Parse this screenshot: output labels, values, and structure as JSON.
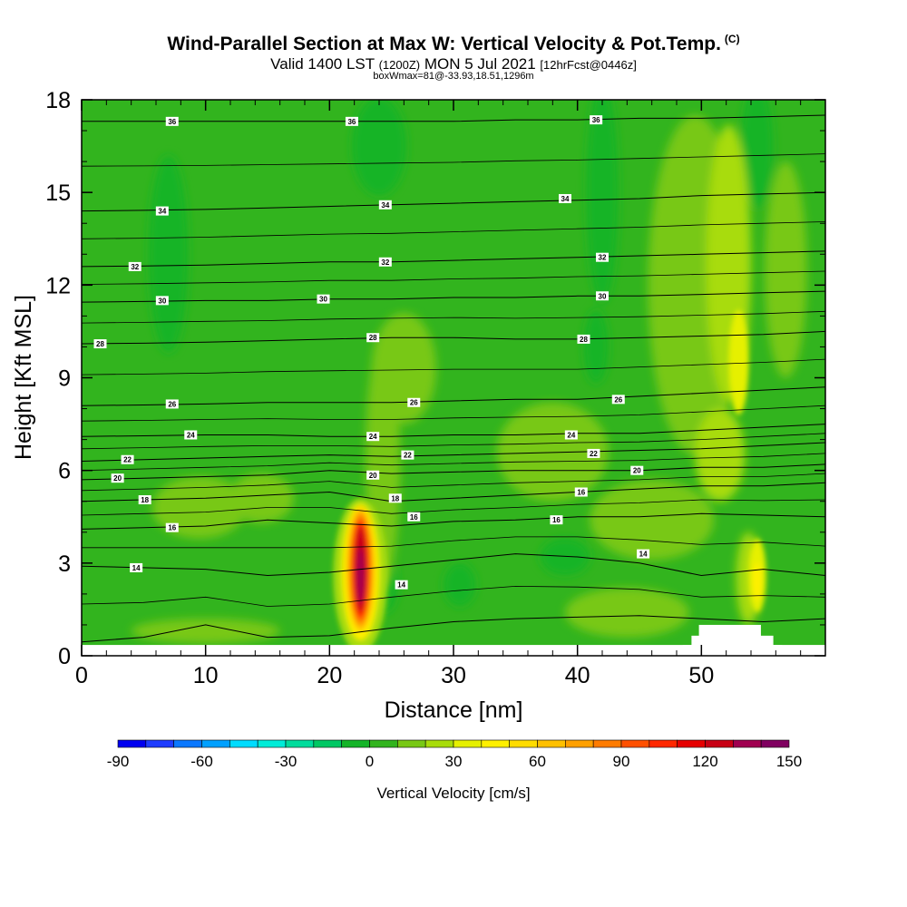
{
  "header": {
    "title": "Wind-Parallel Section at Max W: Vertical Velocity & Pot.Temp.",
    "title_mark": "(C)",
    "subtitle_pre": "Valid 1400 LST",
    "subtitle_z": "(1200Z)",
    "subtitle_date": "MON 5 Jul 2021",
    "subtitle_fcst": "[12hrFcst@0446z]",
    "boxline": "boxWmax=81@-33.93,18.51,1296m"
  },
  "chart_data": {
    "type": "heatmap",
    "xlabel": "Distance [nm]",
    "ylabel": "Height [Kft MSL]",
    "xlim": [
      0,
      60
    ],
    "ylim": [
      0,
      18
    ],
    "x_ticks": [
      0,
      10,
      20,
      30,
      40,
      50
    ],
    "y_ticks": [
      0,
      3,
      6,
      9,
      12,
      15,
      18
    ],
    "colorbar": {
      "title": "Vertical Velocity [cm/s]",
      "levels": [
        -90,
        -80,
        -70,
        -60,
        -50,
        -40,
        -30,
        -20,
        -10,
        0,
        10,
        20,
        30,
        40,
        50,
        60,
        70,
        80,
        90,
        100,
        110,
        120,
        130,
        140,
        150
      ],
      "tick_labels": [
        "-90",
        "-60",
        "-30",
        "0",
        "30",
        "60",
        "90",
        "120",
        "150"
      ],
      "tick_values": [
        -90,
        -60,
        -30,
        0,
        30,
        60,
        90,
        120,
        150
      ],
      "colors": [
        "#0000f0",
        "#1e3cff",
        "#0a78ff",
        "#00a0ff",
        "#00dcff",
        "#00ecd8",
        "#00dc9c",
        "#00c864",
        "#14b428",
        "#32b41e",
        "#78c814",
        "#a8dc0a",
        "#e6f000",
        "#fff000",
        "#ffdc00",
        "#ffc000",
        "#ffa000",
        "#ff7c00",
        "#ff5000",
        "#ff2800",
        "#e60000",
        "#c80014",
        "#a00050",
        "#800060"
      ]
    },
    "background_value_cm_s": 5,
    "w_features": [
      {
        "name": "updraft-core",
        "x": 22.5,
        "z": 2.8,
        "max_w": 130
      },
      {
        "name": "updraft-right",
        "x": 54.5,
        "z": 2.5,
        "max_w": 40
      },
      {
        "name": "weak-updraft-upper",
        "x": 52.5,
        "z": 10.0,
        "max_w": 35
      },
      {
        "name": "weak-downdraft",
        "x": 7.0,
        "z": 13.0,
        "max_w": -10
      }
    ],
    "theta_contours": [
      {
        "label": "14",
        "z": [
          0.45,
          0.6,
          1.0,
          0.6,
          0.65,
          0.9,
          1.1,
          1.2,
          1.25,
          1.3,
          1.2,
          1.1,
          1.2
        ]
      },
      {
        "label": "14",
        "z": [
          2.9,
          2.85,
          2.8,
          2.6,
          2.7,
          2.9,
          3.1,
          3.3,
          3.2,
          3.0,
          2.6,
          2.8,
          2.6
        ]
      },
      {
        "label": "16",
        "z": [
          4.1,
          4.15,
          4.2,
          4.4,
          4.3,
          4.2,
          4.35,
          4.4,
          4.5,
          4.5,
          4.6,
          4.55,
          4.5
        ]
      },
      {
        "label": "18",
        "z": [
          5.0,
          5.05,
          5.1,
          5.2,
          5.3,
          5.0,
          5.1,
          5.2,
          5.3,
          5.4,
          5.5,
          5.5,
          5.6
        ]
      },
      {
        "label": "20",
        "z": [
          5.7,
          5.75,
          5.8,
          5.85,
          6.0,
          5.9,
          5.95,
          6.0,
          6.0,
          6.0,
          6.1,
          6.1,
          6.2
        ]
      },
      {
        "label": "22",
        "z": [
          6.3,
          6.35,
          6.4,
          6.45,
          6.5,
          6.45,
          6.5,
          6.55,
          6.6,
          6.65,
          6.7,
          6.8,
          6.9
        ]
      },
      {
        "label": "24",
        "z": [
          7.1,
          7.12,
          7.15,
          7.15,
          7.1,
          7.1,
          7.15,
          7.15,
          7.2,
          7.2,
          7.3,
          7.4,
          7.5
        ]
      },
      {
        "label": "26",
        "z": [
          8.1,
          8.12,
          8.15,
          8.2,
          8.2,
          8.2,
          8.25,
          8.3,
          8.3,
          8.4,
          8.5,
          8.6,
          8.7
        ]
      },
      {
        "label": "28",
        "z": [
          10.1,
          10.12,
          10.15,
          10.2,
          10.25,
          10.3,
          10.3,
          10.25,
          10.25,
          10.3,
          10.35,
          10.4,
          10.5
        ]
      },
      {
        "label": "30",
        "z": [
          11.45,
          11.47,
          11.5,
          11.5,
          11.55,
          11.55,
          11.6,
          11.6,
          11.65,
          11.65,
          11.7,
          11.75,
          11.8
        ]
      },
      {
        "label": "32",
        "z": [
          12.6,
          12.62,
          12.65,
          12.7,
          12.75,
          12.75,
          12.8,
          12.85,
          12.9,
          12.95,
          13.0,
          13.05,
          13.1
        ]
      },
      {
        "label": "34",
        "z": [
          14.4,
          14.42,
          14.45,
          14.5,
          14.55,
          14.6,
          14.65,
          14.7,
          14.75,
          14.8,
          14.9,
          14.95,
          15.0
        ]
      },
      {
        "label": "36",
        "z": [
          17.3,
          17.3,
          17.3,
          17.3,
          17.3,
          17.3,
          17.3,
          17.35,
          17.35,
          17.4,
          17.4,
          17.45,
          17.5
        ]
      }
    ],
    "theta_x_nodes": [
      0,
      5,
      10,
      15,
      20,
      25,
      30,
      35,
      40,
      45,
      50,
      55,
      60
    ],
    "contour_labels": [
      {
        "text": "36",
        "x": 7.3,
        "z": 17.3
      },
      {
        "text": "36",
        "x": 21.8,
        "z": 17.3
      },
      {
        "text": "36",
        "x": 41.5,
        "z": 17.35
      },
      {
        "text": "34",
        "x": 6.5,
        "z": 14.4
      },
      {
        "text": "34",
        "x": 24.5,
        "z": 14.6
      },
      {
        "text": "34",
        "x": 39.0,
        "z": 14.8
      },
      {
        "text": "32",
        "x": 4.3,
        "z": 12.6
      },
      {
        "text": "32",
        "x": 24.5,
        "z": 12.75
      },
      {
        "text": "32",
        "x": 42.0,
        "z": 12.9
      },
      {
        "text": "30",
        "x": 6.5,
        "z": 11.5
      },
      {
        "text": "30",
        "x": 19.5,
        "z": 11.55
      },
      {
        "text": "30",
        "x": 42.0,
        "z": 11.65
      },
      {
        "text": "28",
        "x": 1.5,
        "z": 10.1
      },
      {
        "text": "28",
        "x": 23.5,
        "z": 10.3
      },
      {
        "text": "28",
        "x": 40.5,
        "z": 10.25
      },
      {
        "text": "26",
        "x": 7.3,
        "z": 8.15
      },
      {
        "text": "26",
        "x": 26.8,
        "z": 8.2
      },
      {
        "text": "26",
        "x": 43.3,
        "z": 8.3
      },
      {
        "text": "24",
        "x": 8.8,
        "z": 7.15
      },
      {
        "text": "24",
        "x": 23.5,
        "z": 7.1
      },
      {
        "text": "24",
        "x": 39.5,
        "z": 7.15
      },
      {
        "text": "22",
        "x": 3.7,
        "z": 6.35
      },
      {
        "text": "22",
        "x": 26.3,
        "z": 6.5
      },
      {
        "text": "22",
        "x": 41.3,
        "z": 6.55
      },
      {
        "text": "20",
        "x": 2.9,
        "z": 5.75
      },
      {
        "text": "20",
        "x": 23.5,
        "z": 5.85
      },
      {
        "text": "20",
        "x": 44.8,
        "z": 6.0
      },
      {
        "text": "18",
        "x": 5.1,
        "z": 5.05
      },
      {
        "text": "18",
        "x": 25.3,
        "z": 5.1
      },
      {
        "text": "16",
        "x": 7.3,
        "z": 4.15
      },
      {
        "text": "16",
        "x": 26.8,
        "z": 4.5
      },
      {
        "text": "16",
        "x": 38.3,
        "z": 4.4
      },
      {
        "text": "16",
        "x": 40.3,
        "z": 5.3
      },
      {
        "text": "14",
        "x": 4.4,
        "z": 2.85
      },
      {
        "text": "14",
        "x": 25.8,
        "z": 2.3
      },
      {
        "text": "14",
        "x": 45.3,
        "z": 3.3
      }
    ],
    "terrain_mask": "white blocks near x 48.5-56.5 nm, z 0-1.0 kft"
  }
}
